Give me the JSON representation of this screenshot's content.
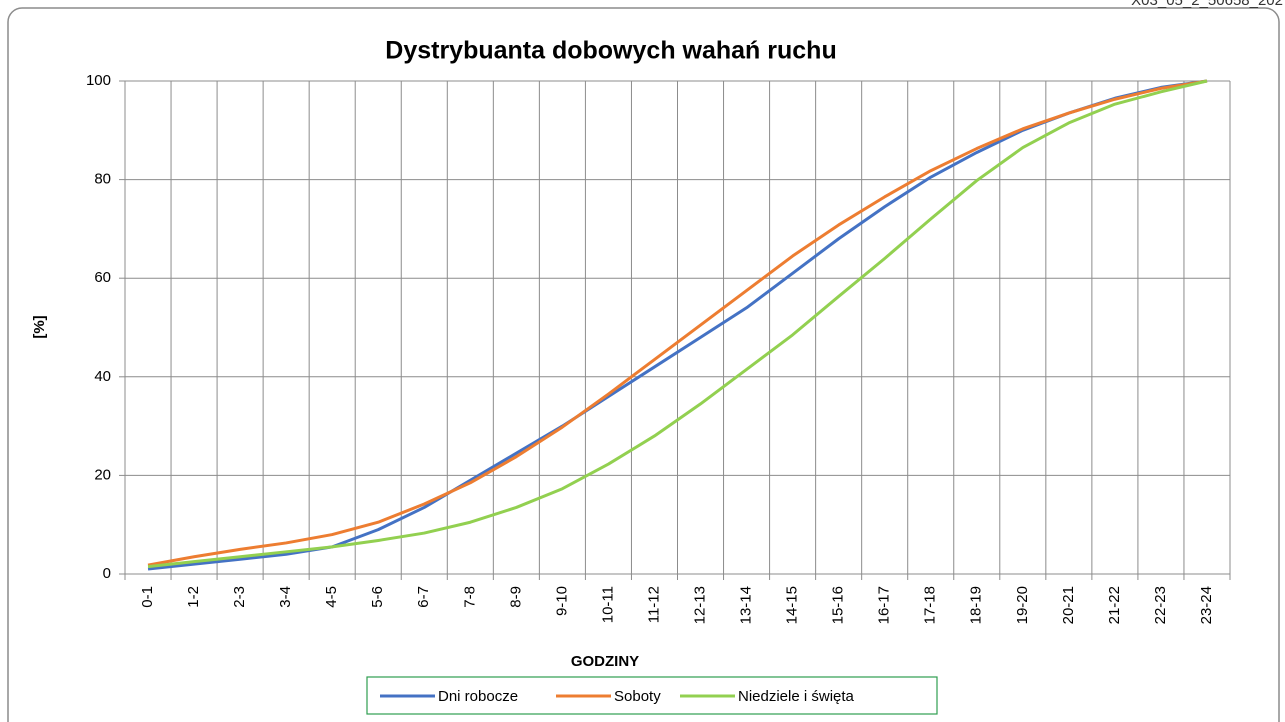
{
  "corner_label": "X03_05_2_50658_202",
  "chart_data": {
    "type": "line",
    "title": "Dystrybuanta dobowych wahań ruchu",
    "x_label": "GODZINY",
    "y_label": "[%]",
    "categories": [
      "0-1",
      "1-2",
      "2-3",
      "3-4",
      "4-5",
      "5-6",
      "6-7",
      "7-8",
      "8-9",
      "9-10",
      "10-11",
      "11-12",
      "12-13",
      "13-14",
      "14-15",
      "15-16",
      "16-17",
      "17-18",
      "18-19",
      "19-20",
      "20-21",
      "21-22",
      "22-23",
      "23-24"
    ],
    "series": [
      {
        "name": "Dni robocze",
        "color": "#4472c4",
        "values": [
          1.0,
          2.0,
          3.0,
          4.0,
          5.5,
          9.0,
          13.5,
          19.0,
          24.5,
          30.0,
          36.0,
          42.0,
          48.0,
          54.0,
          61.0,
          68.0,
          74.5,
          80.5,
          85.5,
          90.0,
          93.5,
          96.5,
          98.7,
          100
        ]
      },
      {
        "name": "Soboty",
        "color": "#ed7d31",
        "values": [
          1.8,
          3.5,
          5.0,
          6.3,
          8.0,
          10.5,
          14.2,
          18.5,
          23.8,
          29.8,
          36.5,
          43.5,
          50.5,
          57.5,
          64.5,
          70.8,
          76.5,
          81.8,
          86.3,
          90.3,
          93.5,
          96.3,
          98.5,
          100
        ]
      },
      {
        "name": "Niedziele i święta",
        "color": "#92d050",
        "values": [
          1.5,
          2.5,
          3.5,
          4.5,
          5.5,
          6.8,
          8.3,
          10.5,
          13.5,
          17.3,
          22.3,
          28.0,
          34.5,
          41.5,
          48.5,
          56.3,
          64.0,
          72.0,
          79.8,
          86.5,
          91.5,
          95.3,
          97.8,
          100
        ]
      }
    ],
    "ylim": [
      0,
      100
    ],
    "yticks": [
      0,
      20,
      40,
      60,
      80,
      100
    ],
    "grid": true,
    "legend": "bottom"
  }
}
